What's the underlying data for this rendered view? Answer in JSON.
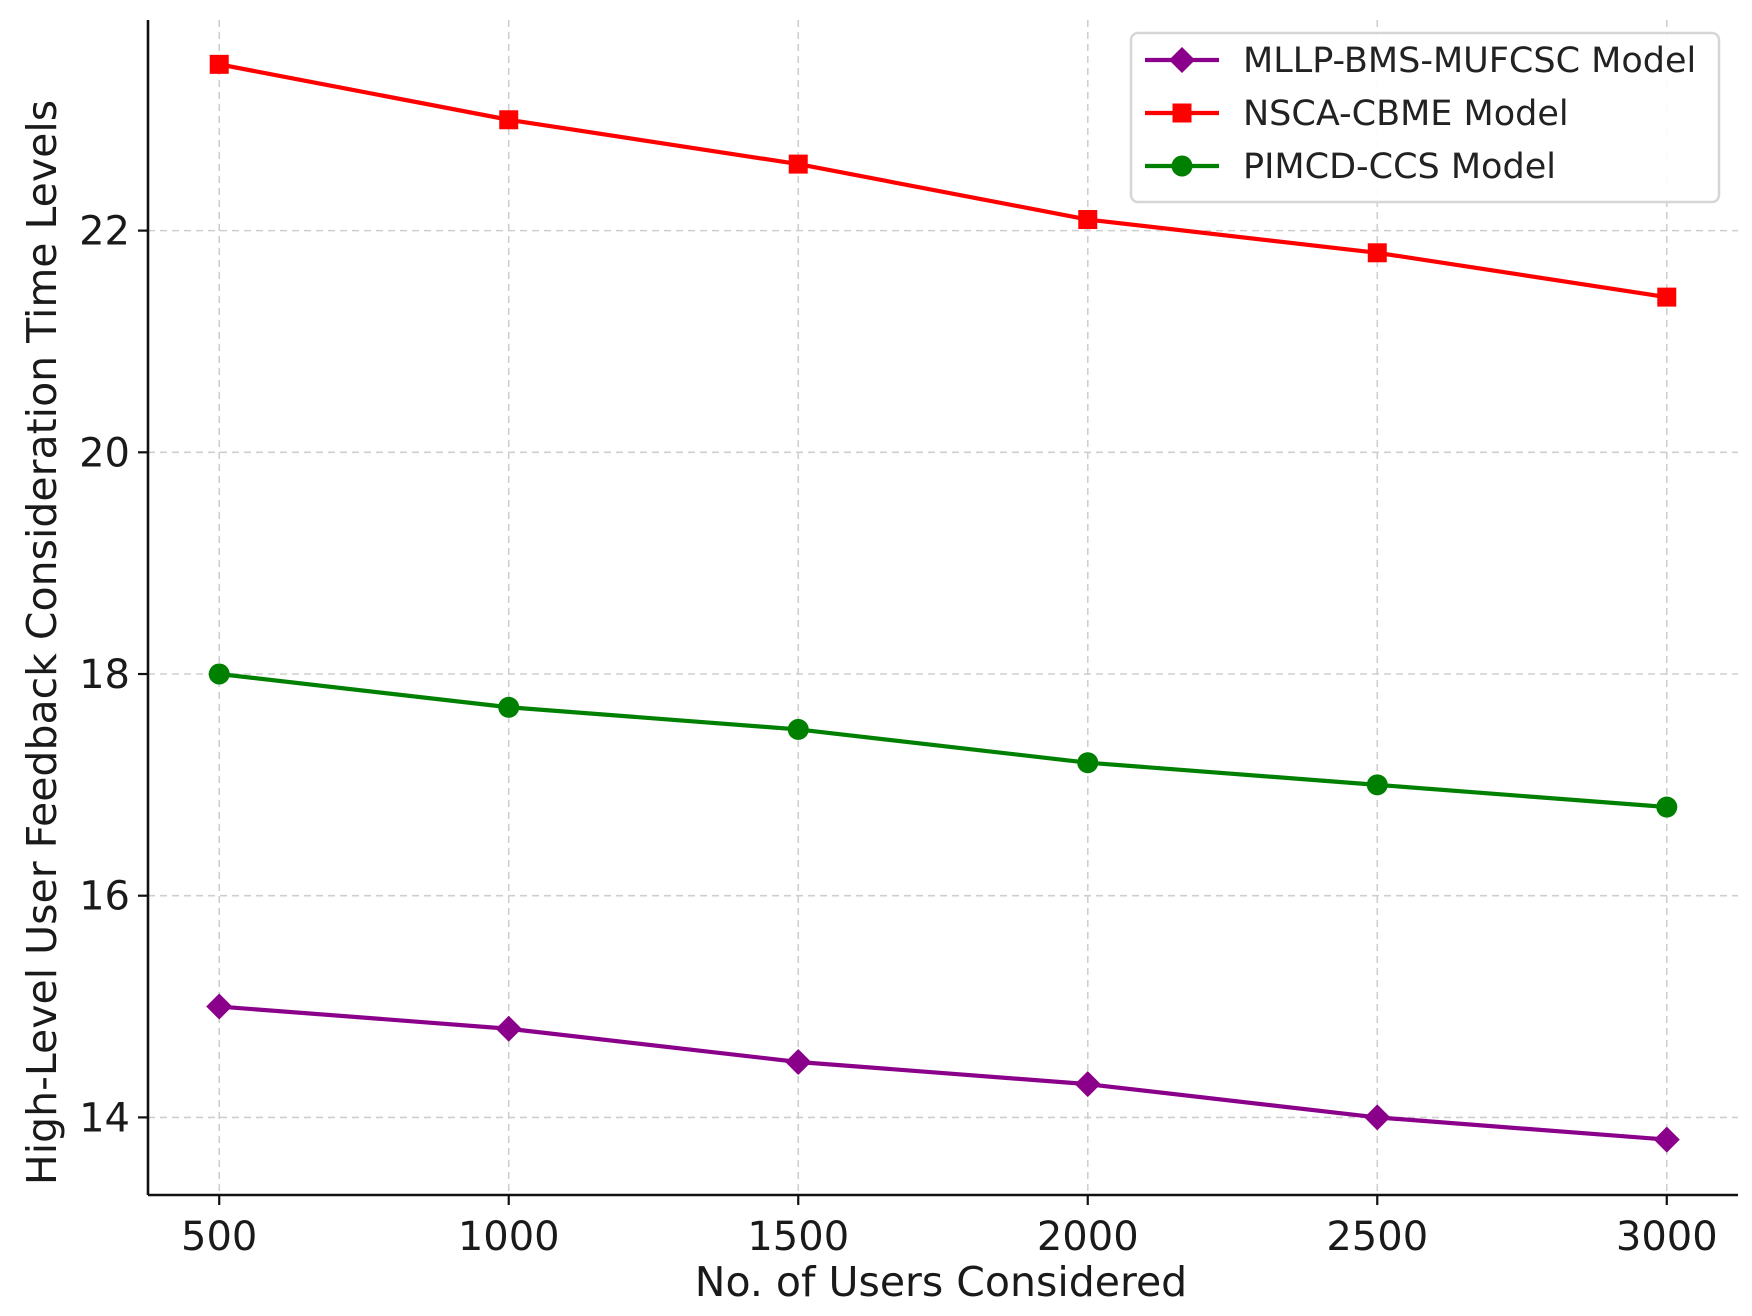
{
  "chart_data": {
    "type": "line",
    "title": "",
    "xlabel": "No. of Users Considered",
    "ylabel": "High-Level User Feedback Consideration Time Levels",
    "x": [
      500,
      1000,
      1500,
      2000,
      2500,
      3000
    ],
    "xticks": [
      "500",
      "1000",
      "1500",
      "2000",
      "2500",
      "3000"
    ],
    "yticks": [
      "14",
      "16",
      "18",
      "20",
      "22"
    ],
    "xlim": [
      377,
      3123
    ],
    "ylim": [
      13.3,
      23.9
    ],
    "grid": true,
    "legend_position": "top-right",
    "series": [
      {
        "name": "MLLP-BMS-MUFCSC Model",
        "color": "#8b008b",
        "marker": "diamond",
        "values": [
          15.0,
          14.8,
          14.5,
          14.3,
          14.0,
          13.8
        ]
      },
      {
        "name": "NSCA-CBME Model",
        "color": "#ff0000",
        "marker": "square",
        "values": [
          23.5,
          23.0,
          22.6,
          22.1,
          21.8,
          21.4
        ]
      },
      {
        "name": "PIMCD-CCS Model",
        "color": "#008000",
        "marker": "circle",
        "values": [
          18.0,
          17.7,
          17.5,
          17.2,
          17.0,
          16.8
        ]
      }
    ]
  }
}
